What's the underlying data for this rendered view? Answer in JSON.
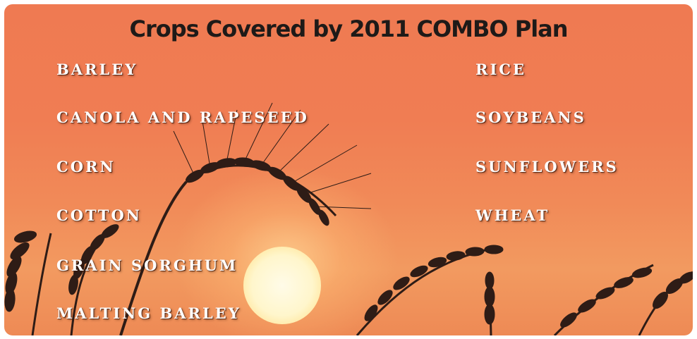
{
  "title": "Crops Covered by 2011 COMBO Plan",
  "crops_left": [
    "BARLEY",
    "CANOLA AND RAPESEED",
    "CORN",
    "COTTON",
    "GRAIN SORGHUM",
    "MALTING BARLEY"
  ],
  "crops_right": [
    "RICE",
    "SOYBEANS",
    "SUNFLOWERS",
    "WHEAT"
  ],
  "colors": {
    "background": "#f07d53",
    "title": "#1e1a18",
    "crop_text": "#ffffff",
    "silhouette": "#2e1c16"
  }
}
